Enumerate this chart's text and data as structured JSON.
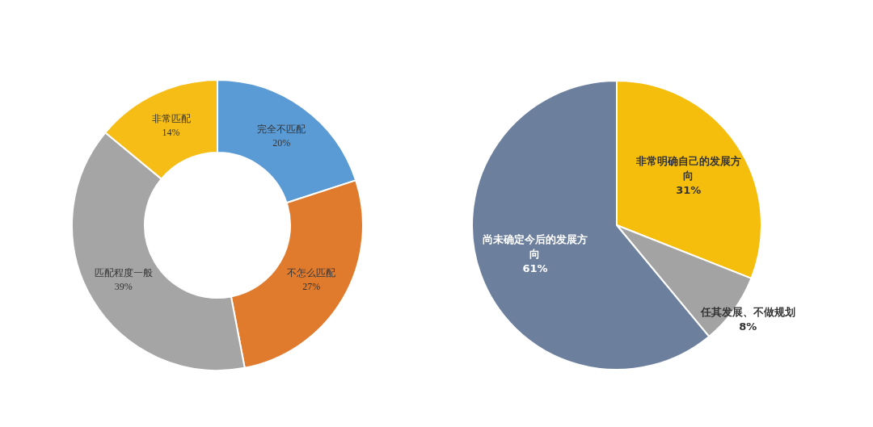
{
  "chart_data": [
    {
      "type": "donut",
      "categories": [
        "完全不匹配",
        "不怎么匹配",
        "匹配程度一般",
        "非常匹配"
      ],
      "values": [
        20,
        27,
        39,
        14
      ],
      "value_labels": [
        "20%",
        "27%",
        "39%",
        "14%"
      ],
      "colors": [
        "#5b9bd5",
        "#e07b2e",
        "#a5a5a5",
        "#f5bd16"
      ]
    },
    {
      "type": "pie",
      "categories": [
        "非常明确自己的发展方向",
        "任其发展、不做规划",
        "尚未确定今后的发展方向"
      ],
      "values": [
        31,
        8,
        61
      ],
      "value_labels": [
        "31%",
        "8%",
        "61%"
      ],
      "colors": [
        "#f5bd0c",
        "#a3a3a3",
        "#6c7f9c"
      ]
    }
  ]
}
